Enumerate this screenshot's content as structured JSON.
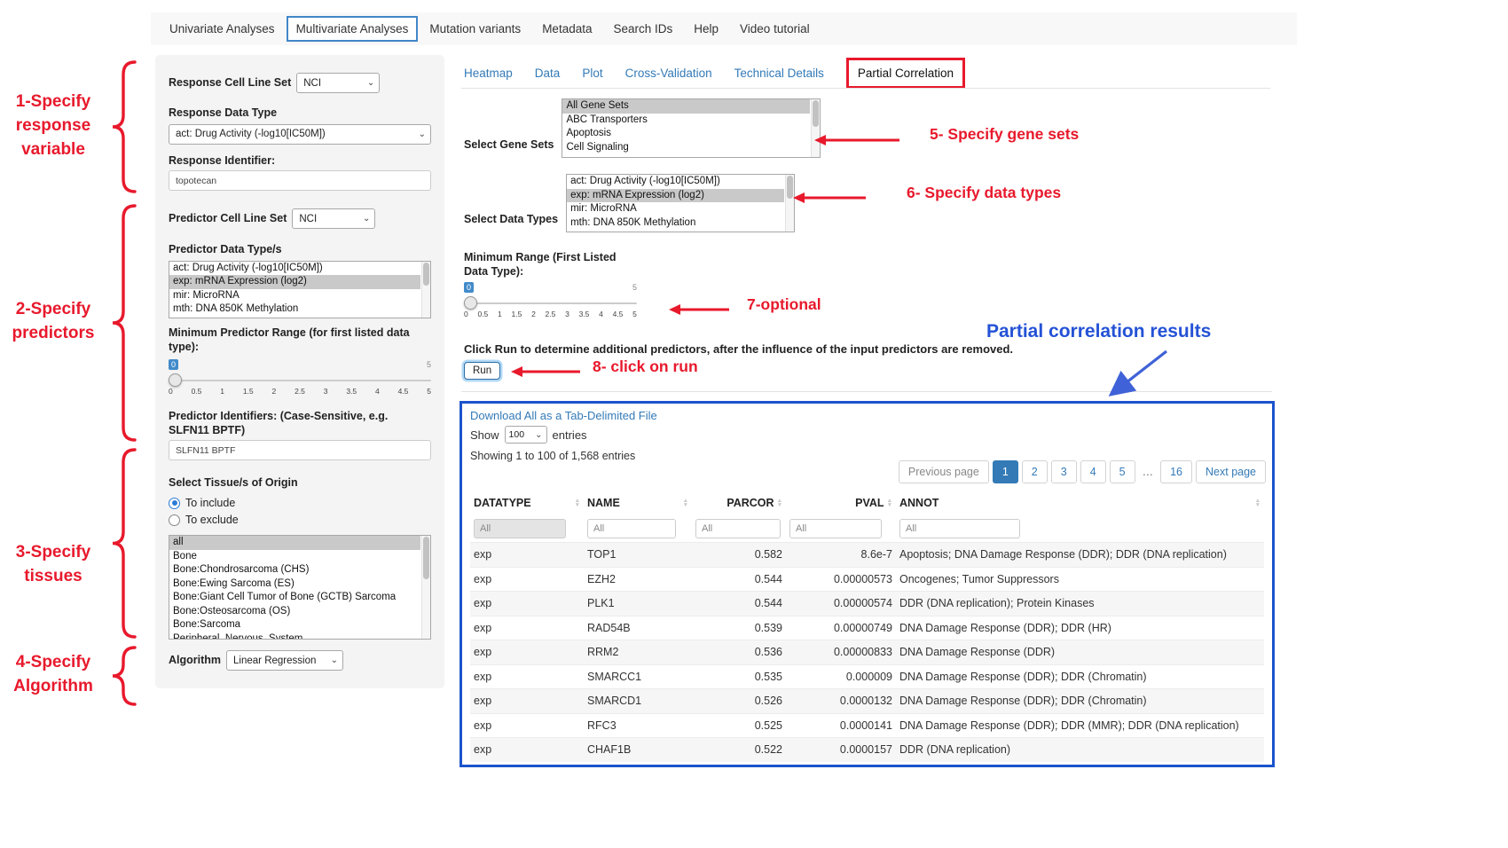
{
  "nav": {
    "items": [
      {
        "label": "Univariate Analyses",
        "active": false
      },
      {
        "label": "Multivariate Analyses",
        "active": true
      },
      {
        "label": "Mutation variants",
        "active": false
      },
      {
        "label": "Metadata",
        "active": false
      },
      {
        "label": "Search IDs",
        "active": false
      },
      {
        "label": "Help",
        "active": false
      },
      {
        "label": "Video tutorial",
        "active": false
      }
    ]
  },
  "annotations": {
    "accent_red": "#e8192c",
    "accent_blue": "#2452d6",
    "left_notes": [
      "1-Specify\nresponse\nvariable",
      "2-Specify\npredictors",
      "3-Specify\ntissues",
      "4-Specify\nAlgorithm"
    ],
    "step5": "5- Specify gene sets",
    "step6": "6- Specify data types",
    "step7": "7-optional",
    "step8": "8- click on run",
    "results_title": "Partial correlation results"
  },
  "sidebar": {
    "response_cell_line_set_label": "Response Cell Line Set",
    "response_cell_line_set_value": "NCI",
    "response_data_type_label": "Response Data Type",
    "response_data_type_value": "act: Drug Activity (-log10[IC50M])",
    "response_identifier_label": "Response Identifier:",
    "response_identifier_value": "topotecan",
    "predictor_cell_line_set_label": "Predictor Cell Line Set",
    "predictor_cell_line_set_value": "NCI",
    "predictor_data_types_label": "Predictor Data Type/s",
    "predictor_data_types_options": [
      "act: Drug Activity (-log10[IC50M])",
      "exp: mRNA Expression (log2)",
      "mir: MicroRNA",
      "mth: DNA 850K Methylation"
    ],
    "predictor_data_types_selected": "exp: mRNA Expression (log2)",
    "min_predictor_range_label": "Minimum Predictor Range (for first listed data type):",
    "min_predictor_range_value": "0",
    "min_predictor_range_max": "5",
    "slider_ticks": [
      "0",
      "0.5",
      "1",
      "1.5",
      "2",
      "2.5",
      "3",
      "3.5",
      "4",
      "4.5",
      "5"
    ],
    "predictor_identifiers_label": "Predictor Identifiers: (Case-Sensitive, e.g. SLFN11 BPTF)",
    "predictor_identifiers_value": "SLFN11 BPTF",
    "tissues_label": "Select Tissue/s of Origin",
    "tissue_radio_include": "To include",
    "tissue_radio_exclude": "To exclude",
    "tissue_radio_selected": "To include",
    "tissue_options": [
      "all",
      "Bone",
      "Bone:Chondrosarcoma (CHS)",
      "Bone:Ewing Sarcoma (ES)",
      "Bone:Giant Cell Tumor of Bone (GCTB) Sarcoma",
      "Bone:Osteosarcoma (OS)",
      "Bone:Sarcoma",
      "Peripheral_Nervous_System"
    ],
    "tissue_selected": "all",
    "algorithm_label": "Algorithm",
    "algorithm_value": "Linear Regression"
  },
  "main": {
    "tabs": [
      "Heatmap",
      "Data",
      "Plot",
      "Cross-Validation",
      "Technical Details",
      "Partial Correlation"
    ],
    "active_tab": "Partial Correlation",
    "gene_sets_label": "Select Gene Sets",
    "gene_sets_options": [
      "All Gene Sets",
      "ABC Transporters",
      "Apoptosis",
      "Cell Signaling"
    ],
    "gene_sets_selected": "All Gene Sets",
    "data_types_label": "Select Data Types",
    "data_types_options": [
      "act: Drug Activity (-log10[IC50M])",
      "exp: mRNA Expression (log2)",
      "mir: MicroRNA",
      "mth: DNA 850K Methylation"
    ],
    "data_types_selected": "exp: mRNA Expression (log2)",
    "min_range_label": "Minimum Range (First Listed Data Type):",
    "min_range_value": "0",
    "min_range_max": "5",
    "run_instruction": "Click Run to determine additional predictors, after the influence of the input predictors are removed.",
    "run_button": "Run"
  },
  "results": {
    "download_link": "Download All as a Tab-Delimited File",
    "show_label": "Show",
    "show_value": "100",
    "entries_label": "entries",
    "showing_text": "Showing 1 to 100 of 1,568 entries",
    "pagination": {
      "prev": "Previous page",
      "pages": [
        "1",
        "2",
        "3",
        "4",
        "5",
        "…",
        "16"
      ],
      "active": "1",
      "next": "Next page"
    },
    "table": {
      "columns": [
        "DATATYPE",
        "NAME",
        "PARCOR",
        "PVAL",
        "ANNOT"
      ],
      "filter_placeholder": "All",
      "rows": [
        [
          "exp",
          "TOP1",
          "0.582",
          "8.6e-7",
          "Apoptosis; DNA Damage Response (DDR); DDR (DNA replication)"
        ],
        [
          "exp",
          "EZH2",
          "0.544",
          "0.00000573",
          "Oncogenes; Tumor Suppressors"
        ],
        [
          "exp",
          "PLK1",
          "0.544",
          "0.00000574",
          "DDR (DNA replication); Protein Kinases"
        ],
        [
          "exp",
          "RAD54B",
          "0.539",
          "0.00000749",
          "DNA Damage Response (DDR); DDR (HR)"
        ],
        [
          "exp",
          "RRM2",
          "0.536",
          "0.00000833",
          "DNA Damage Response (DDR)"
        ],
        [
          "exp",
          "SMARCC1",
          "0.535",
          "0.000009",
          "DNA Damage Response (DDR); DDR (Chromatin)"
        ],
        [
          "exp",
          "SMARCD1",
          "0.526",
          "0.0000132",
          "DNA Damage Response (DDR); DDR (Chromatin)"
        ],
        [
          "exp",
          "RFC3",
          "0.525",
          "0.0000141",
          "DNA Damage Response (DDR); DDR (MMR); DDR (DNA replication)"
        ],
        [
          "exp",
          "CHAF1B",
          "0.522",
          "0.0000157",
          "DDR (DNA replication)"
        ]
      ]
    }
  }
}
